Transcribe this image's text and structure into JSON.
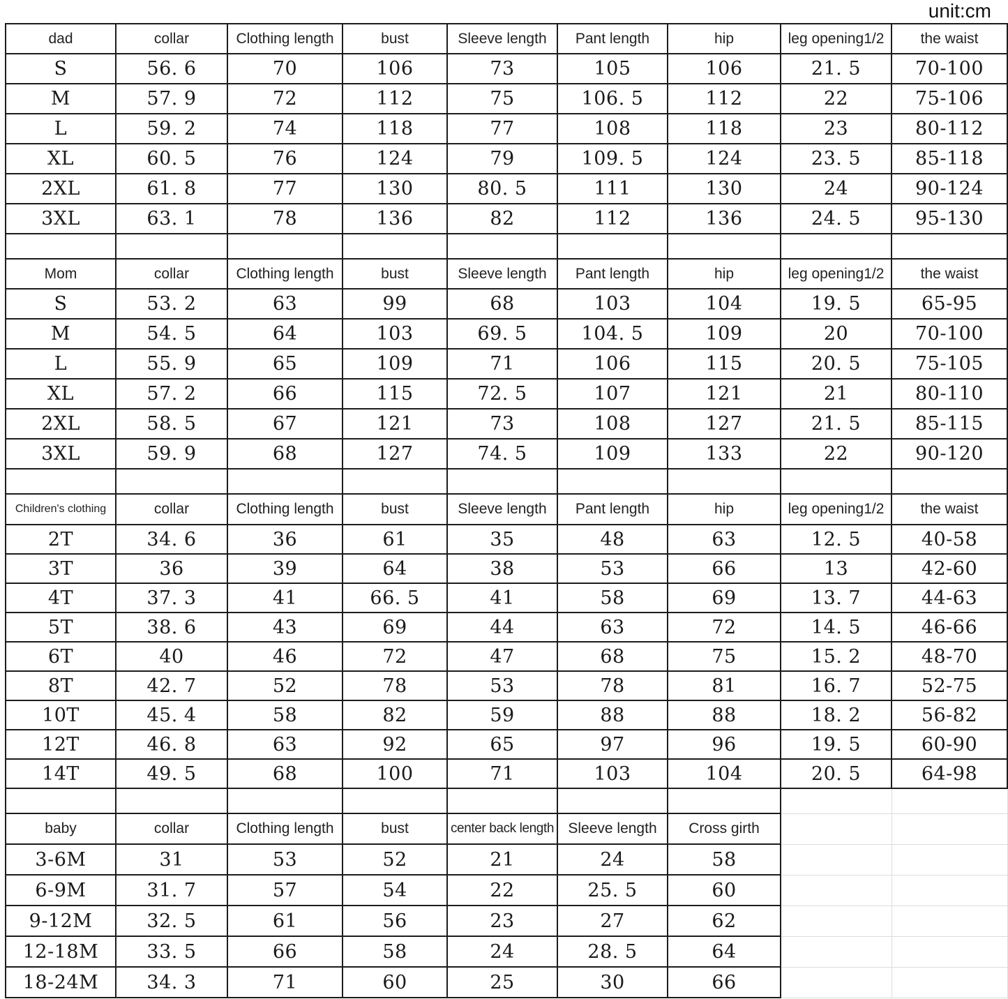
{
  "unit_label": "unit:cm",
  "sections": [
    {
      "label": "dad",
      "columns": [
        "collar",
        "Clothing length",
        "bust",
        "Sleeve length",
        "Pant length",
        "hip",
        "leg opening1/2",
        "the waist"
      ],
      "rows": [
        [
          "S",
          "56. 6",
          "70",
          "106",
          "73",
          "105",
          "106",
          "21. 5",
          "70-100"
        ],
        [
          "M",
          "57. 9",
          "72",
          "112",
          "75",
          "106. 5",
          "112",
          "22",
          "75-106"
        ],
        [
          "L",
          "59. 2",
          "74",
          "118",
          "77",
          "108",
          "118",
          "23",
          "80-112"
        ],
        [
          "XL",
          "60. 5",
          "76",
          "124",
          "79",
          "109. 5",
          "124",
          "23. 5",
          "85-118"
        ],
        [
          "2XL",
          "61. 8",
          "77",
          "130",
          "80. 5",
          "111",
          "130",
          "24",
          "90-124"
        ],
        [
          "3XL",
          "63. 1",
          "78",
          "136",
          "82",
          "112",
          "136",
          "24. 5",
          "95-130"
        ]
      ]
    },
    {
      "label": "Mom",
      "columns": [
        "collar",
        "Clothing length",
        "bust",
        "Sleeve length",
        "Pant length",
        "hip",
        "leg opening1/2",
        "the waist"
      ],
      "rows": [
        [
          "S",
          "53. 2",
          "63",
          "99",
          "68",
          "103",
          "104",
          "19. 5",
          "65-95"
        ],
        [
          "M",
          "54. 5",
          "64",
          "103",
          "69. 5",
          "104. 5",
          "109",
          "20",
          "70-100"
        ],
        [
          "L",
          "55. 9",
          "65",
          "109",
          "71",
          "106",
          "115",
          "20. 5",
          "75-105"
        ],
        [
          "XL",
          "57. 2",
          "66",
          "115",
          "72. 5",
          "107",
          "121",
          "21",
          "80-110"
        ],
        [
          "2XL",
          "58. 5",
          "67",
          "121",
          "73",
          "108",
          "127",
          "21. 5",
          "85-115"
        ],
        [
          "3XL",
          "59. 9",
          "68",
          "127",
          "74. 5",
          "109",
          "133",
          "22",
          "90-120"
        ]
      ]
    },
    {
      "label": "Children's clothing",
      "columns": [
        "collar",
        "Clothing length",
        "bust",
        "Sleeve length",
        "Pant length",
        "hip",
        "leg opening1/2",
        "the waist"
      ],
      "rows": [
        [
          "2T",
          "34. 6",
          "36",
          "61",
          "35",
          "48",
          "63",
          "12. 5",
          "40-58"
        ],
        [
          "3T",
          "36",
          "39",
          "64",
          "38",
          "53",
          "66",
          "13",
          "42-60"
        ],
        [
          "4T",
          "37. 3",
          "41",
          "66. 5",
          "41",
          "58",
          "69",
          "13. 7",
          "44-63"
        ],
        [
          "5T",
          "38. 6",
          "43",
          "69",
          "44",
          "63",
          "72",
          "14. 5",
          "46-66"
        ],
        [
          "6T",
          "40",
          "46",
          "72",
          "47",
          "68",
          "75",
          "15. 2",
          "48-70"
        ],
        [
          "8T",
          "42. 7",
          "52",
          "78",
          "53",
          "78",
          "81",
          "16. 7",
          "52-75"
        ],
        [
          "10T",
          "45. 4",
          "58",
          "82",
          "59",
          "88",
          "88",
          "18. 2",
          "56-82"
        ],
        [
          "12T",
          "46. 8",
          "63",
          "92",
          "65",
          "97",
          "96",
          "19. 5",
          "60-90"
        ],
        [
          "14T",
          "49. 5",
          "68",
          "100",
          "71",
          "103",
          "104",
          "20. 5",
          "64-98"
        ]
      ]
    },
    {
      "label": "baby",
      "columns": [
        "collar",
        "Clothing length",
        "bust",
        "center back length",
        "Sleeve length",
        "Cross girth"
      ],
      "rows": [
        [
          "3-6M",
          "31",
          "53",
          "52",
          "21",
          "24",
          "58"
        ],
        [
          "6-9M",
          "31. 7",
          "57",
          "54",
          "22",
          "25. 5",
          "60"
        ],
        [
          "9-12M",
          "32. 5",
          "61",
          "56",
          "23",
          "27",
          "62"
        ],
        [
          "12-18M",
          "33. 5",
          "66",
          "58",
          "24",
          "28. 5",
          "64"
        ],
        [
          "18-24M",
          "34. 3",
          "71",
          "60",
          "25",
          "30",
          "66"
        ]
      ]
    }
  ]
}
